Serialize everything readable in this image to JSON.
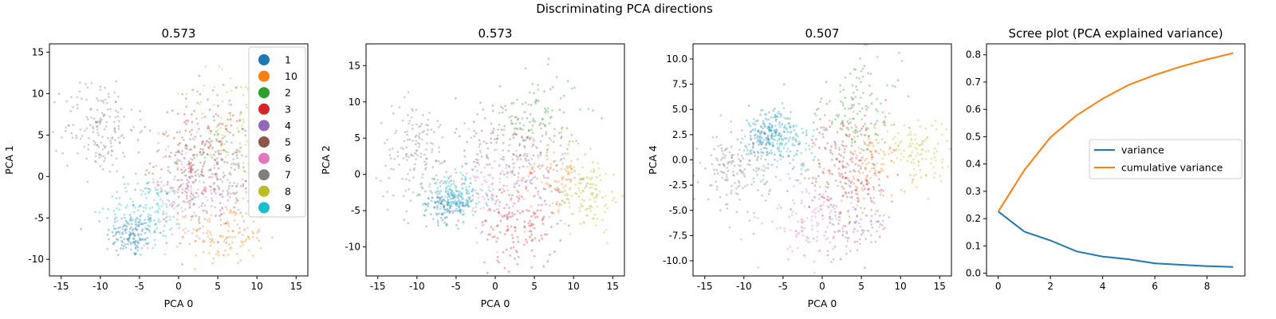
{
  "figure": {
    "suptitle": "Discriminating PCA directions"
  },
  "chart_data": [
    {
      "type": "scatter",
      "title": "0.573",
      "xlabel": "PCA 0",
      "ylabel": "PCA 1",
      "xlim": [
        -16.5,
        16.5
      ],
      "ylim": [
        -12,
        16
      ],
      "xticks": [
        -15,
        -10,
        -5,
        0,
        5,
        10,
        15
      ],
      "yticks": [
        -10,
        -5,
        0,
        5,
        10,
        15
      ],
      "legend": {
        "placement": "top-right",
        "entries": [
          "1",
          "10",
          "2",
          "3",
          "4",
          "5",
          "6",
          "7",
          "8",
          "9"
        ]
      },
      "clusters": [
        {
          "label": "1",
          "center": [
            -6,
            -7
          ],
          "spread": [
            1.6,
            1.4
          ],
          "n": 140
        },
        {
          "label": "10",
          "center": [
            6,
            -7
          ],
          "spread": [
            2.5,
            1.8
          ],
          "n": 120
        },
        {
          "label": "2",
          "center": [
            5,
            3
          ],
          "spread": [
            3.0,
            4.0
          ],
          "n": 90
        },
        {
          "label": "3",
          "center": [
            3,
            2
          ],
          "spread": [
            3.0,
            4.0
          ],
          "n": 150
        },
        {
          "label": "4",
          "center": [
            5,
            -1
          ],
          "spread": [
            2.5,
            2.5
          ],
          "n": 110
        },
        {
          "label": "5",
          "center": [
            2,
            1
          ],
          "spread": [
            3.0,
            3.0
          ],
          "n": 90
        },
        {
          "label": "6",
          "center": [
            0,
            -2
          ],
          "spread": [
            2.5,
            3.0
          ],
          "n": 110
        },
        {
          "label": "7",
          "center": [
            -10,
            6
          ],
          "spread": [
            2.3,
            3.0
          ],
          "n": 170
        },
        {
          "label": "8",
          "center": [
            7,
            6
          ],
          "spread": [
            3.0,
            3.5
          ],
          "n": 90
        },
        {
          "label": "9",
          "center": [
            -4,
            -4
          ],
          "spread": [
            2.5,
            2.0
          ],
          "n": 140
        }
      ]
    },
    {
      "type": "scatter",
      "title": "0.573",
      "xlabel": "PCA 0",
      "ylabel": "PCA 2",
      "xlim": [
        -16.5,
        16.5
      ],
      "ylim": [
        -14,
        18
      ],
      "xticks": [
        -15,
        -10,
        -5,
        0,
        5,
        10,
        15
      ],
      "yticks": [
        -10,
        -5,
        0,
        5,
        10,
        15
      ],
      "clusters": [
        {
          "label": "1",
          "center": [
            -6,
            -4
          ],
          "spread": [
            1.6,
            1.3
          ],
          "n": 140
        },
        {
          "label": "10",
          "center": [
            8,
            0
          ],
          "spread": [
            2.5,
            2.5
          ],
          "n": 100
        },
        {
          "label": "2",
          "center": [
            5,
            8
          ],
          "spread": [
            3.0,
            3.0
          ],
          "n": 110
        },
        {
          "label": "3",
          "center": [
            3,
            -7
          ],
          "spread": [
            2.5,
            3.0
          ],
          "n": 150
        },
        {
          "label": "4",
          "center": [
            4,
            1
          ],
          "spread": [
            3.0,
            3.0
          ],
          "n": 100
        },
        {
          "label": "5",
          "center": [
            1,
            4
          ],
          "spread": [
            3.0,
            3.5
          ],
          "n": 90
        },
        {
          "label": "6",
          "center": [
            0,
            -2
          ],
          "spread": [
            3.0,
            3.0
          ],
          "n": 110
        },
        {
          "label": "7",
          "center": [
            -10,
            3
          ],
          "spread": [
            2.5,
            3.5
          ],
          "n": 160
        },
        {
          "label": "8",
          "center": [
            12,
            -3
          ],
          "spread": [
            2.0,
            2.5
          ],
          "n": 110
        },
        {
          "label": "9",
          "center": [
            -5,
            -3
          ],
          "spread": [
            2.0,
            1.6
          ],
          "n": 140
        }
      ]
    },
    {
      "type": "scatter",
      "title": "0.507",
      "xlabel": "PCA 0",
      "ylabel": "PCA 4",
      "xlim": [
        -16.5,
        16.5
      ],
      "ylim": [
        -11.5,
        11.5
      ],
      "xticks": [
        -15,
        -10,
        -5,
        0,
        5,
        10,
        15
      ],
      "yticks": [
        -10.0,
        -7.5,
        -5.0,
        -2.5,
        0.0,
        2.5,
        5.0,
        7.5,
        10.0
      ],
      "clusters": [
        {
          "label": "1",
          "center": [
            -7,
            2.5
          ],
          "spread": [
            1.5,
            1.2
          ],
          "n": 140
        },
        {
          "label": "10",
          "center": [
            6,
            -0.5
          ],
          "spread": [
            2.5,
            2.5
          ],
          "n": 110
        },
        {
          "label": "2",
          "center": [
            5,
            5
          ],
          "spread": [
            2.5,
            2.5
          ],
          "n": 110
        },
        {
          "label": "3",
          "center": [
            3,
            -2
          ],
          "spread": [
            2.8,
            2.8
          ],
          "n": 150
        },
        {
          "label": "4",
          "center": [
            4,
            -6
          ],
          "spread": [
            2.5,
            1.8
          ],
          "n": 100
        },
        {
          "label": "5",
          "center": [
            1,
            1
          ],
          "spread": [
            3.0,
            2.8
          ],
          "n": 90
        },
        {
          "label": "6",
          "center": [
            -2,
            -6
          ],
          "spread": [
            2.5,
            2.0
          ],
          "n": 110
        },
        {
          "label": "7",
          "center": [
            -11,
            -1
          ],
          "spread": [
            2.2,
            1.8
          ],
          "n": 160
        },
        {
          "label": "8",
          "center": [
            12,
            1
          ],
          "spread": [
            2.3,
            1.5
          ],
          "n": 110
        },
        {
          "label": "9",
          "center": [
            -5,
            2
          ],
          "spread": [
            2.0,
            1.5
          ],
          "n": 140
        }
      ]
    },
    {
      "type": "line",
      "title": "Scree plot (PCA explained variance)",
      "xlabel": "",
      "ylabel": "",
      "xlim": [
        -0.45,
        9.45
      ],
      "ylim": [
        -0.01,
        0.84
      ],
      "xticks": [
        0,
        2,
        4,
        6,
        8
      ],
      "yticks": [
        0.0,
        0.1,
        0.2,
        0.3,
        0.4,
        0.5,
        0.6,
        0.7,
        0.8
      ],
      "x": [
        0,
        1,
        2,
        3,
        4,
        5,
        6,
        7,
        8,
        9
      ],
      "legend": {
        "placement": "center-right"
      },
      "series": [
        {
          "name": "variance",
          "color": "#1f77b4",
          "values": [
            0.226,
            0.152,
            0.12,
            0.08,
            0.061,
            0.051,
            0.036,
            0.031,
            0.026,
            0.023
          ]
        },
        {
          "name": "cumulative variance",
          "color": "#ff7f0e",
          "values": [
            0.226,
            0.378,
            0.498,
            0.578,
            0.639,
            0.69,
            0.726,
            0.757,
            0.783,
            0.806
          ]
        }
      ]
    }
  ],
  "colors": {
    "1": "#1f77b4",
    "10": "#ff7f0e",
    "2": "#2ca02c",
    "3": "#d62728",
    "4": "#9467bd",
    "5": "#8c564b",
    "6": "#e377c2",
    "7": "#7f7f7f",
    "8": "#bcbd22",
    "9": "#17becf"
  }
}
